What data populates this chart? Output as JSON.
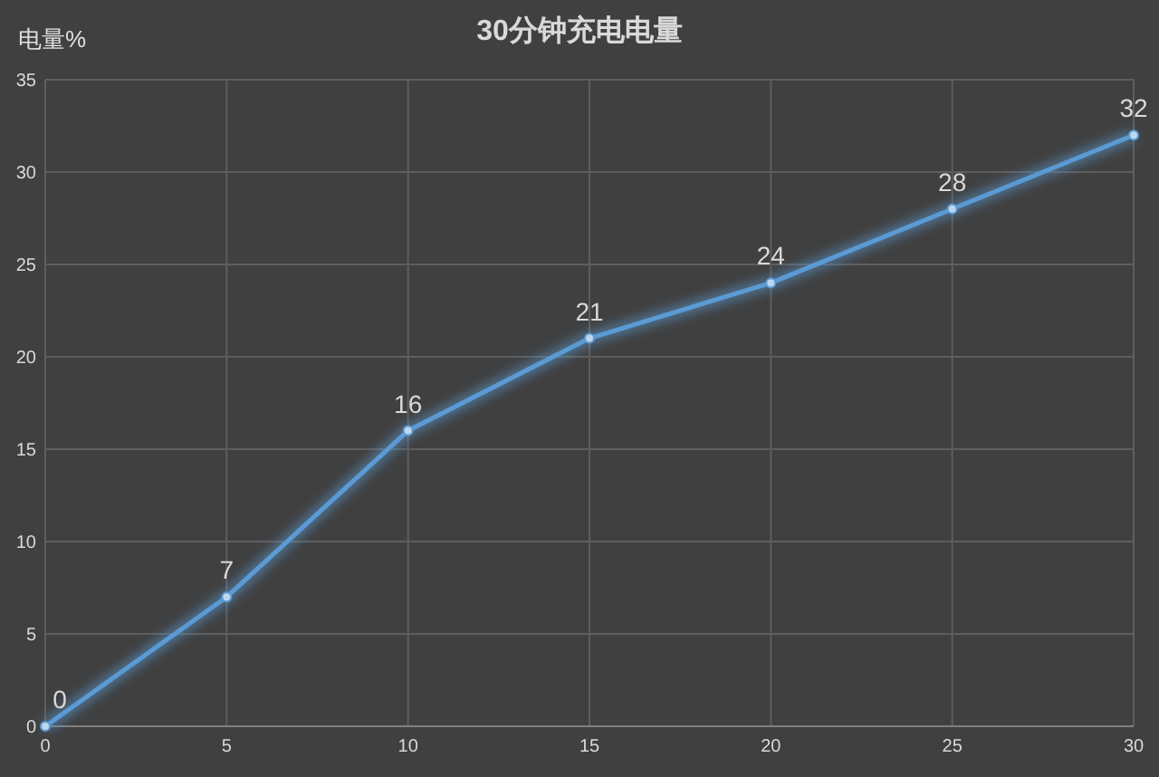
{
  "chart_data": {
    "type": "line",
    "title": "30分钟充电电量",
    "ylabel": "电量%",
    "x": [
      0,
      5,
      10,
      15,
      20,
      25,
      30
    ],
    "series": [
      {
        "color": "#5b9bd5",
        "values": [
          0,
          7,
          16,
          21,
          24,
          28,
          32
        ]
      }
    ],
    "xlim": [
      0,
      30
    ],
    "xticks": [
      0,
      5,
      10,
      15,
      20,
      25,
      30
    ],
    "ylim": [
      0,
      35
    ],
    "yticks": [
      0,
      5,
      10,
      15,
      20,
      25,
      30,
      35
    ],
    "grid": true,
    "marker": "circle",
    "line_style": "solid",
    "data_labels": true
  }
}
